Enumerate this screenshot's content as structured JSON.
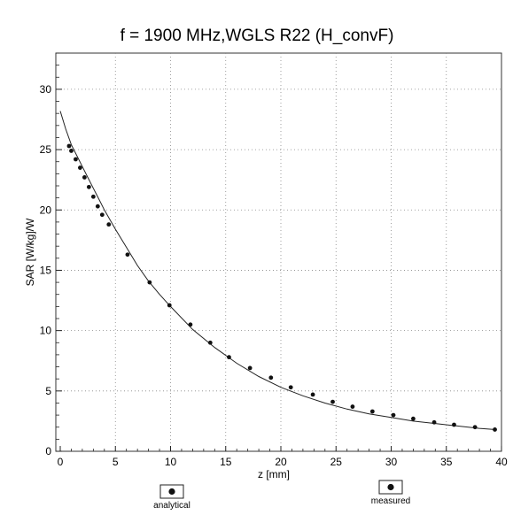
{
  "chart_data": {
    "type": "line",
    "title": "f = 1900 MHz,WGLS R22 (H_convF)",
    "xlabel": "z [mm]",
    "ylabel": "SAR [W/kg]/W",
    "xlim": [
      0,
      40
    ],
    "ylim": [
      0,
      33
    ],
    "xticks": [
      0,
      5,
      10,
      15,
      20,
      25,
      30,
      35,
      40
    ],
    "yticks": [
      0,
      5,
      10,
      15,
      20,
      25,
      30
    ],
    "grid": "dotted",
    "legend": {
      "placement": "bottom"
    },
    "series": [
      {
        "name": "analytical",
        "kind": "line",
        "x": [
          0,
          0.5,
          1,
          1.5,
          2,
          2.5,
          3,
          3.5,
          4,
          5,
          6,
          7,
          8,
          9,
          10,
          12,
          14,
          16,
          18,
          20,
          22,
          24,
          26,
          28,
          30,
          32,
          34,
          36,
          38,
          39.5
        ],
        "y": [
          28.2,
          26.7,
          25.4,
          24.5,
          23.6,
          22.7,
          21.8,
          20.9,
          20.0,
          18.4,
          16.9,
          15.4,
          14.1,
          13.0,
          12.0,
          10.1,
          8.6,
          7.3,
          6.2,
          5.3,
          4.6,
          4.0,
          3.5,
          3.1,
          2.8,
          2.5,
          2.3,
          2.1,
          1.9,
          1.8
        ]
      },
      {
        "name": "measured",
        "kind": "points",
        "x": [
          0.8,
          1.0,
          1.4,
          1.8,
          2.2,
          2.6,
          3.0,
          3.4,
          3.8,
          4.4,
          6.1,
          8.1,
          9.9,
          11.8,
          13.6,
          15.3,
          17.2,
          19.1,
          20.9,
          22.9,
          24.7,
          26.5,
          28.3,
          30.2,
          32.0,
          33.9,
          35.7,
          37.6,
          39.4
        ],
        "y": [
          25.3,
          24.9,
          24.2,
          23.5,
          22.7,
          21.9,
          21.1,
          20.3,
          19.6,
          18.8,
          16.3,
          14.0,
          12.1,
          10.5,
          9.0,
          7.8,
          6.9,
          6.1,
          5.3,
          4.7,
          4.1,
          3.7,
          3.3,
          3.0,
          2.7,
          2.4,
          2.2,
          2.0,
          1.8
        ]
      }
    ]
  }
}
